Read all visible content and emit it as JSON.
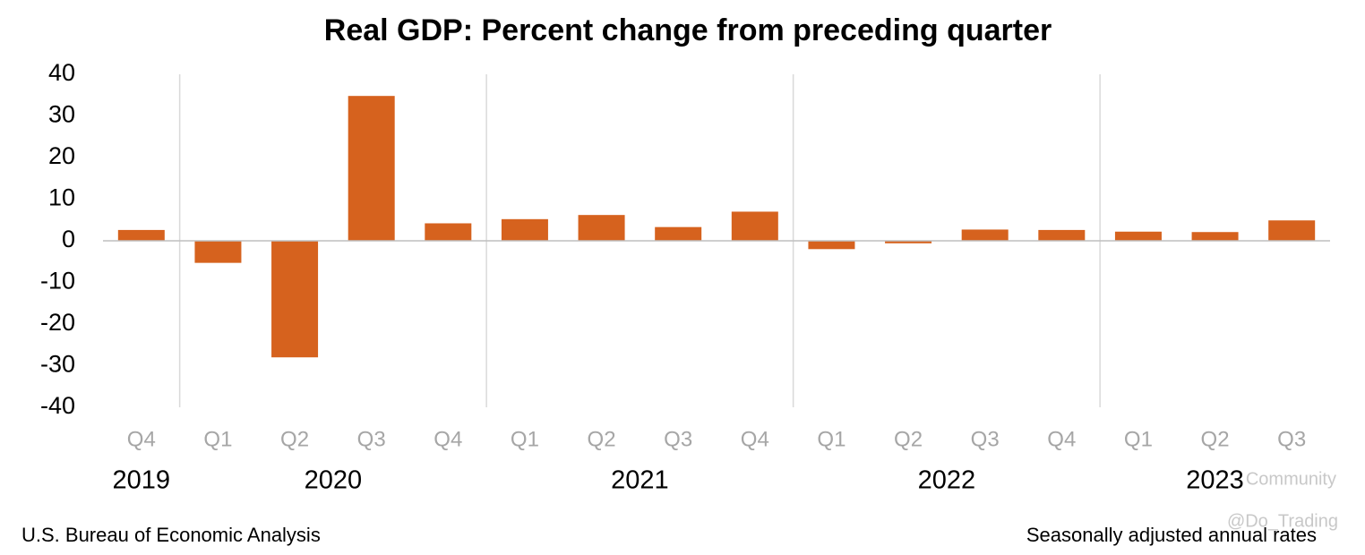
{
  "chart_data": {
    "type": "bar",
    "title": "Real GDP:  Percent change from preceding quarter",
    "groups": [
      {
        "label": "2019",
        "categories": [
          "Q4"
        ],
        "values": [
          2.6
        ]
      },
      {
        "label": "2020",
        "categories": [
          "Q1",
          "Q2",
          "Q3",
          "Q4"
        ],
        "values": [
          -5.3,
          -28.0,
          34.8,
          4.2
        ]
      },
      {
        "label": "2021",
        "categories": [
          "Q1",
          "Q2",
          "Q3",
          "Q4"
        ],
        "values": [
          5.2,
          6.2,
          3.3,
          7.0
        ]
      },
      {
        "label": "2022",
        "categories": [
          "Q1",
          "Q2",
          "Q3",
          "Q4"
        ],
        "values": [
          -2.0,
          -0.6,
          2.7,
          2.6
        ]
      },
      {
        "label": "2023",
        "categories": [
          "Q1",
          "Q2",
          "Q3"
        ],
        "values": [
          2.2,
          2.1,
          4.9
        ]
      }
    ],
    "color": "#d6621e",
    "ylim": [
      -40,
      40
    ],
    "yticks": [
      -40,
      -30,
      -20,
      -10,
      0,
      10,
      20,
      30,
      40
    ],
    "source": "U.S. Bureau of Economic Analysis",
    "note": "Seasonally adjusted annual rates",
    "watermark": "Community",
    "watermark_handle": "@Do_Trading"
  }
}
